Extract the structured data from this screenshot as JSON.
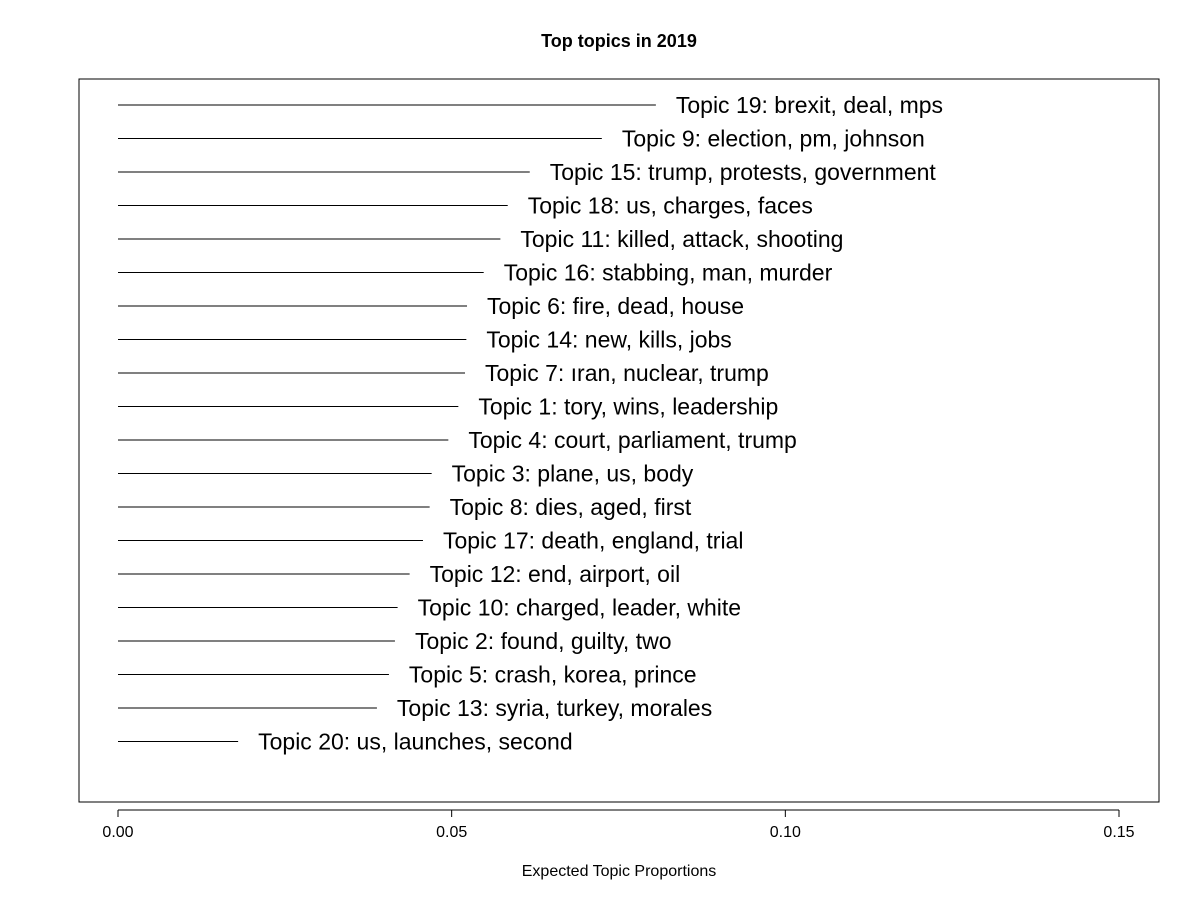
{
  "chart_data": {
    "type": "bar",
    "orientation": "horizontal",
    "title": "Top topics in 2019",
    "xlabel": "Expected Topic Proportions",
    "ylabel": "",
    "xlim": [
      0,
      0.15
    ],
    "xticks": [
      "0.00",
      "0.05",
      "0.10",
      "0.15"
    ],
    "grid": false,
    "categories": [
      "Topic 19: brexit, deal, mps",
      "Topic 9: election, pm, johnson",
      "Topic 15: trump, protests, government",
      "Topic 18: us, charges, faces",
      "Topic 11: killed, attack, shooting",
      "Topic 16: stabbing, man, murder",
      "Topic 6: fire, dead, house",
      "Topic 14: new, kills, jobs",
      "Topic 7: ıran, nuclear, trump",
      "Topic 1: tory, wins, leadership",
      "Topic 4: court, parliament, trump",
      "Topic 3: plane, us, body",
      "Topic 8: dies, aged, first",
      "Topic 17: death, england, trial",
      "Topic 12: end, airport, oil",
      "Topic 10: charged, leader, white",
      "Topic 2: found, guilty, two",
      "Topic 5: crash, korea, prince",
      "Topic 13: syria, turkey, morales",
      "Topic 20: us, launches, second"
    ],
    "values": [
      0.0806,
      0.0725,
      0.0617,
      0.0584,
      0.0573,
      0.0548,
      0.0523,
      0.0522,
      0.052,
      0.051,
      0.0495,
      0.047,
      0.0467,
      0.0457,
      0.0437,
      0.0419,
      0.0415,
      0.0406,
      0.0388,
      0.018
    ],
    "colors": {
      "line": "#000000",
      "text": "#000000",
      "background": "#ffffff"
    }
  }
}
